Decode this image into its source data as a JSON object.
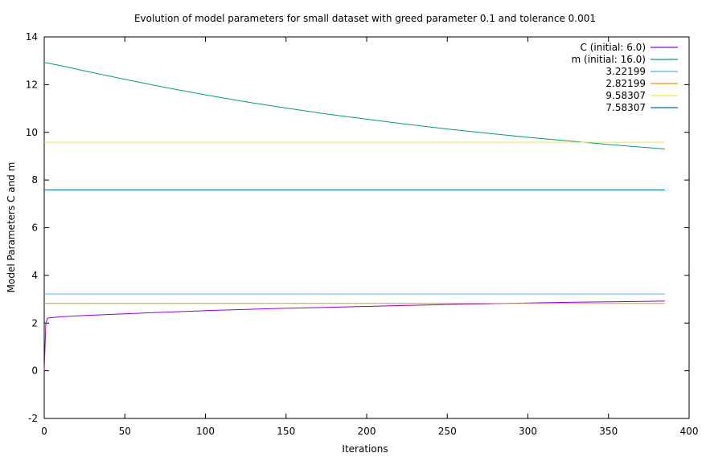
{
  "chart_data": {
    "type": "line",
    "title": "Evolution of model parameters for small dataset with greed parameter 0.1 and tolerance 0.001",
    "xlabel": "Iterations",
    "ylabel": "Model Parameters C and m",
    "xlim": [
      0,
      400
    ],
    "ylim": [
      -2,
      14
    ],
    "xticks": [
      "0",
      "50",
      "100",
      "150",
      "200",
      "250",
      "300",
      "350",
      "400"
    ],
    "yticks": [
      "-2",
      "0",
      "2",
      "4",
      "6",
      "8",
      "10",
      "12",
      "14"
    ],
    "grid": false,
    "legend_position": "top-right",
    "series": [
      {
        "name": "C (initial: 6.0)",
        "color": "#9400d3",
        "x": [
          0,
          1,
          2,
          3,
          10,
          25,
          50,
          75,
          100,
          125,
          150,
          175,
          200,
          225,
          250,
          275,
          300,
          325,
          350,
          385
        ],
        "y": [
          0.0,
          2.0,
          2.2,
          2.22,
          2.26,
          2.32,
          2.39,
          2.46,
          2.52,
          2.57,
          2.62,
          2.66,
          2.7,
          2.74,
          2.78,
          2.81,
          2.84,
          2.87,
          2.89,
          2.92
        ]
      },
      {
        "name": "m (initial: 16.0)",
        "color": "#009e73",
        "x": [
          0,
          10,
          25,
          50,
          75,
          100,
          125,
          150,
          175,
          200,
          225,
          250,
          275,
          300,
          325,
          350,
          385
        ],
        "y": [
          12.93,
          12.8,
          12.58,
          12.22,
          11.88,
          11.57,
          11.28,
          11.02,
          10.77,
          10.55,
          10.34,
          10.14,
          9.96,
          9.79,
          9.64,
          9.49,
          9.3
        ]
      },
      {
        "name": "3.22199",
        "color": "#56b4e9",
        "x": [
          0,
          385
        ],
        "y": [
          3.22199,
          3.22199
        ]
      },
      {
        "name": "2.82199",
        "color": "#e69f00",
        "x": [
          0,
          385
        ],
        "y": [
          2.82199,
          2.82199
        ]
      },
      {
        "name": "9.58307",
        "color": "#f0e442",
        "x": [
          0,
          385
        ],
        "y": [
          9.58307,
          9.58307
        ]
      },
      {
        "name": "7.58307",
        "color": "#0072b2",
        "x": [
          0,
          385
        ],
        "y": [
          7.58307,
          7.58307
        ]
      }
    ]
  }
}
